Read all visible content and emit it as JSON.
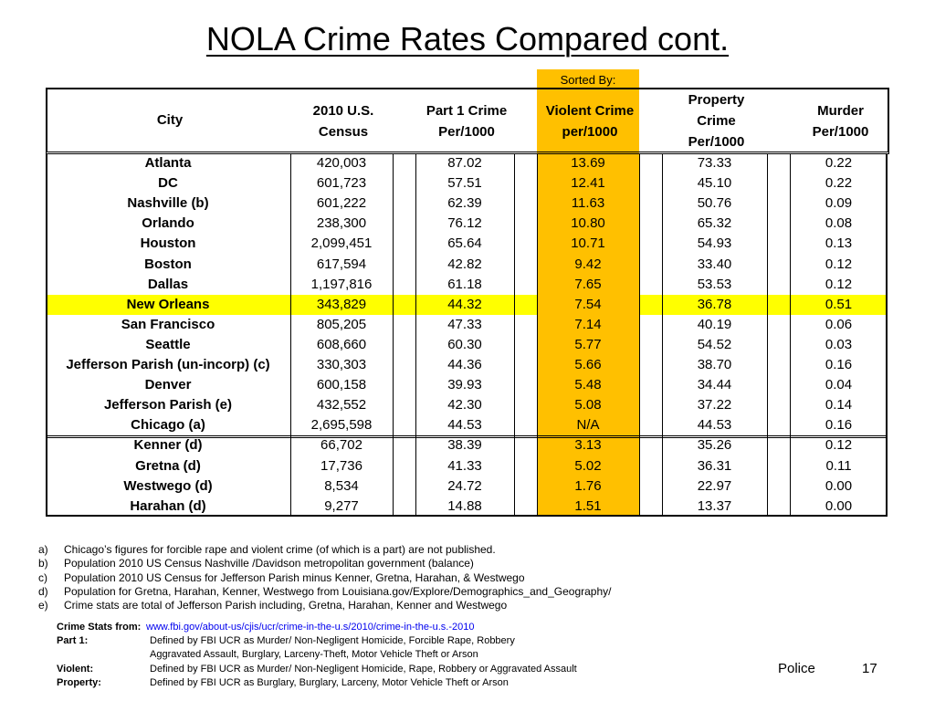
{
  "title": "NOLA Crime Rates Compared cont.",
  "sorted_by_label": "Sorted By:",
  "headers": {
    "city": "City",
    "census": [
      "2010 U.S.",
      "Census"
    ],
    "part1": [
      "Part 1  Crime",
      "Per/1000"
    ],
    "violent": [
      "Violent Crime",
      "per/1000"
    ],
    "property": [
      "Property",
      "Crime",
      "Per/1000"
    ],
    "murder": [
      "Murder",
      "Per/1000"
    ]
  },
  "rows": [
    {
      "city": "Atlanta",
      "census": "420,003",
      "part1": "87.02",
      "violent": "13.69",
      "property": "73.33",
      "murder": "0.22"
    },
    {
      "city": "DC",
      "census": "601,723",
      "part1": "57.51",
      "violent": "12.41",
      "property": "45.10",
      "murder": "0.22"
    },
    {
      "city": "Nashville  (b)",
      "census": "601,222",
      "part1": "62.39",
      "violent": "11.63",
      "property": "50.76",
      "murder": "0.09"
    },
    {
      "city": "Orlando",
      "census": "238,300",
      "part1": "76.12",
      "violent": "10.80",
      "property": "65.32",
      "murder": "0.08"
    },
    {
      "city": "Houston",
      "census": "2,099,451",
      "part1": "65.64",
      "violent": "10.71",
      "property": "54.93",
      "murder": "0.13"
    },
    {
      "city": "Boston",
      "census": "617,594",
      "part1": "42.82",
      "violent": "9.42",
      "property": "33.40",
      "murder": "0.12"
    },
    {
      "city": "Dallas",
      "census": "1,197,816",
      "part1": "61.18",
      "violent": "7.65",
      "property": "53.53",
      "murder": "0.12"
    },
    {
      "city": "New Orleans",
      "census": "343,829",
      "part1": "44.32",
      "violent": "7.54",
      "property": "36.78",
      "murder": "0.51",
      "highlight": true
    },
    {
      "city": "San Francisco",
      "census": "805,205",
      "part1": "47.33",
      "violent": "7.14",
      "property": "40.19",
      "murder": "0.06"
    },
    {
      "city": "Seattle",
      "census": "608,660",
      "part1": "60.30",
      "violent": "5.77",
      "property": "54.52",
      "murder": "0.03"
    },
    {
      "city": "Jefferson Parish (un-incorp) (c)",
      "census": "330,303",
      "part1": "44.36",
      "violent": "5.66",
      "property": "38.70",
      "murder": "0.16"
    },
    {
      "city": "Denver",
      "census": "600,158",
      "part1": "39.93",
      "violent": "5.48",
      "property": "34.44",
      "murder": "0.04"
    },
    {
      "city": "Jefferson Parish (e)",
      "census": "432,552",
      "part1": "42.30",
      "violent": "5.08",
      "property": "37.22",
      "murder": "0.14"
    },
    {
      "city": "Chicago (a)",
      "census": "2,695,598",
      "part1": "44.53",
      "violent": "N/A",
      "property": "44.53",
      "murder": "0.16"
    },
    {
      "city": "Kenner (d)",
      "census": "66,702",
      "part1": "38.39",
      "violent": "3.13",
      "property": "35.26",
      "murder": "0.12"
    },
    {
      "city": "Gretna (d)",
      "census": "17,736",
      "part1": "41.33",
      "violent": "5.02",
      "property": "36.31",
      "murder": "0.11"
    },
    {
      "city": "Westwego (d)",
      "census": "8,534",
      "part1": "24.72",
      "violent": "1.76",
      "property": "22.97",
      "murder": "0.00"
    },
    {
      "city": "Harahan (d)",
      "census": "9,277",
      "part1": "14.88",
      "violent": "1.51",
      "property": "13.37",
      "murder": "0.00"
    }
  ],
  "footnotes": [
    {
      "key": "a)",
      "text": "Chicago’s figures for forcible rape and violent crime (of which is a part) are not published."
    },
    {
      "key": "b)",
      "text": "Population 2010 US Census Nashville /Davidson metropolitan government (balance)"
    },
    {
      "key": "c)",
      "text": "Population 2010 US Census for Jefferson Parish minus Kenner, Gretna, Harahan, & Westwego"
    },
    {
      "key": "d)",
      "text": "Population for Gretna, Harahan, Kenner, Westwego from Louisiana.gov/Explore/Demographics_and_Geography/"
    },
    {
      "key": "e)",
      "text": "Crime stats are total of Jefferson Parish including, Gretna, Harahan, Kenner and Westwego"
    }
  ],
  "sources": {
    "crime_stats_label": "Crime Stats from:",
    "crime_stats_link": "www.fbi.gov/about-us/cjis/ucr/crime-in-the-u.s/2010/crime-in-the-u.s.-2010",
    "part1_label": "Part 1:",
    "part1_def": [
      "Defined by FBI UCR as Murder/ Non-Negligent Homicide, Forcible Rape, Robbery",
      "Aggravated Assault, Burglary, Larceny-Theft, Motor Vehicle Theft or Arson"
    ],
    "violent_label": "Violent:",
    "violent_def": "Defined by FBI UCR as Murder/ Non-Negligent Homicide, Rape, Robbery or Aggravated Assault",
    "property_label": "Property:",
    "property_def": "Defined by FBI UCR as Burglary, Burglary, Larceny, Motor Vehicle Theft or Arson"
  },
  "footer": {
    "section": "Police",
    "page": "17"
  },
  "colors": {
    "sorted_column": "#FFC000",
    "highlight_row": "#FFFF00"
  }
}
